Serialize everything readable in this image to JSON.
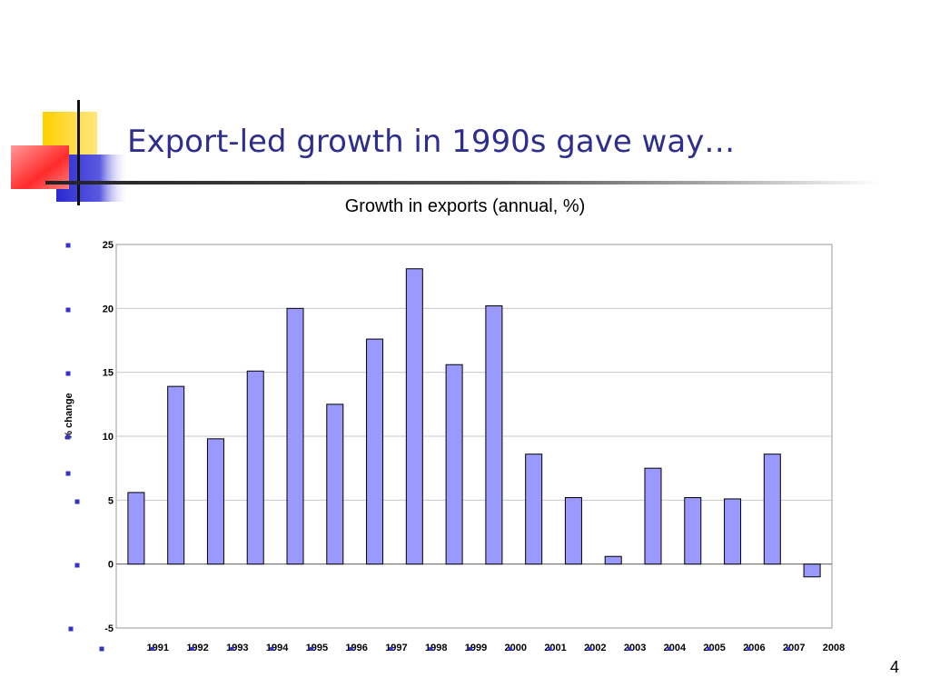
{
  "slide": {
    "title": "Export-led growth in 1990s gave way…",
    "number": "4"
  },
  "colors": {
    "title": "#2e2e8e",
    "bar_fill": "#9999ff",
    "bar_stroke": "#000000",
    "bullet": "#3333cc",
    "deco_yellow": "#ffd400",
    "deco_blue": "#3a3ad0",
    "deco_red": "#ff3333"
  },
  "chart_data": {
    "type": "bar",
    "title": "Growth in exports (annual, %)",
    "xlabel": "",
    "ylabel": "% change",
    "categories": [
      "1991",
      "1992",
      "1993",
      "1994",
      "1995",
      "1996",
      "1997",
      "1998",
      "1999",
      "2000",
      "2001",
      "2002",
      "2003",
      "2004",
      "2005",
      "2006",
      "2007",
      "2008"
    ],
    "values": [
      5.6,
      13.9,
      9.8,
      15.1,
      20.0,
      12.5,
      17.6,
      23.1,
      15.6,
      20.2,
      8.6,
      5.2,
      0.6,
      7.5,
      5.2,
      5.1,
      8.6,
      -1.0
    ],
    "ylim": [
      -5,
      25
    ],
    "yticks": [
      "-5",
      "0",
      "5",
      "10",
      "15",
      "20",
      "25"
    ],
    "grid": true,
    "legend": "none"
  }
}
